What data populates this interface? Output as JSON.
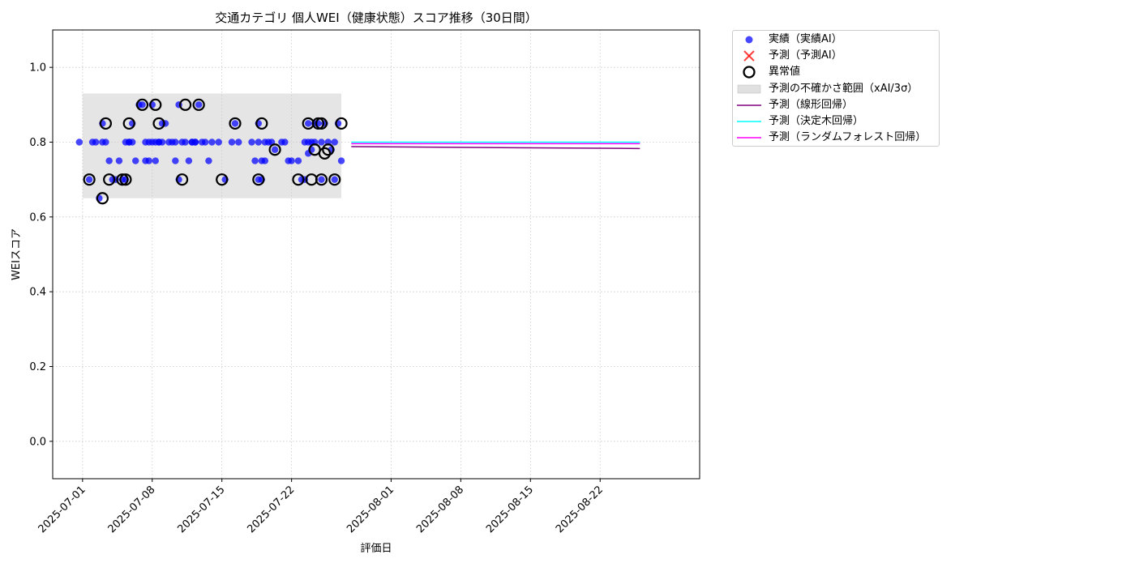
{
  "chart_data": {
    "type": "scatter",
    "title": "交通カテゴリ 個人WEI（健康状態）スコア推移（30日間）",
    "xlabel": "評価日",
    "ylabel": "WEIスコア",
    "ylim": [
      -0.1,
      1.1
    ],
    "xlim": [
      "2025-06-28",
      "2025-09-01"
    ],
    "yticks": [
      "0.0",
      "0.2",
      "0.4",
      "0.6",
      "0.8",
      "1.0"
    ],
    "xticks": [
      "2025-07-01",
      "2025-07-08",
      "2025-07-15",
      "2025-07-22",
      "2025-08-01",
      "2025-08-08",
      "2025-08-15",
      "2025-08-22"
    ],
    "grid": true,
    "legend_position": "outside-top-right",
    "uncertainty_band": {
      "x_start": "2025-07-01",
      "x_end": "2025-07-27",
      "y_low": 0.65,
      "y_high": 0.93
    },
    "actual_points": [
      [
        "2025-07-01",
        0.8
      ],
      [
        "2025-07-02",
        0.8
      ],
      [
        "2025-07-02",
        0.8
      ],
      [
        "2025-07-02",
        0.7
      ],
      [
        "2025-07-03",
        0.8
      ],
      [
        "2025-07-03",
        0.8
      ],
      [
        "2025-07-03",
        0.65
      ],
      [
        "2025-07-03",
        0.85
      ],
      [
        "2025-07-04",
        0.7
      ],
      [
        "2025-07-04",
        0.75
      ],
      [
        "2025-07-04",
        0.7
      ],
      [
        "2025-07-05",
        0.7
      ],
      [
        "2025-07-05",
        0.75
      ],
      [
        "2025-07-05",
        0.7
      ],
      [
        "2025-07-05",
        0.8
      ],
      [
        "2025-07-06",
        0.8
      ],
      [
        "2025-07-06",
        0.85
      ],
      [
        "2025-07-06",
        0.75
      ],
      [
        "2025-07-06",
        0.8
      ],
      [
        "2025-07-06",
        0.8
      ],
      [
        "2025-07-07",
        0.8
      ],
      [
        "2025-07-07",
        0.9
      ],
      [
        "2025-07-07",
        0.9
      ],
      [
        "2025-07-07",
        0.75
      ],
      [
        "2025-07-08",
        0.8
      ],
      [
        "2025-07-08",
        0.8
      ],
      [
        "2025-07-08",
        0.75
      ],
      [
        "2025-07-08",
        0.75
      ],
      [
        "2025-07-08",
        0.9
      ],
      [
        "2025-07-08",
        0.8
      ],
      [
        "2025-07-09",
        0.8
      ],
      [
        "2025-07-09",
        0.85
      ],
      [
        "2025-07-09",
        0.85
      ],
      [
        "2025-07-09",
        0.8
      ],
      [
        "2025-07-09",
        0.8
      ],
      [
        "2025-07-10",
        0.75
      ],
      [
        "2025-07-10",
        0.8
      ],
      [
        "2025-07-10",
        0.8
      ],
      [
        "2025-07-10",
        0.8
      ],
      [
        "2025-07-11",
        0.7
      ],
      [
        "2025-07-11",
        0.8
      ],
      [
        "2025-07-11",
        0.8
      ],
      [
        "2025-07-11",
        0.9
      ],
      [
        "2025-07-12",
        0.8
      ],
      [
        "2025-07-12",
        0.8
      ],
      [
        "2025-07-12",
        0.75
      ],
      [
        "2025-07-12",
        0.8
      ],
      [
        "2025-07-12",
        0.8
      ],
      [
        "2025-07-13",
        0.9
      ],
      [
        "2025-07-13",
        0.8
      ],
      [
        "2025-07-13",
        0.8
      ],
      [
        "2025-07-14",
        0.75
      ],
      [
        "2025-07-14",
        0.8
      ],
      [
        "2025-07-15",
        0.7
      ],
      [
        "2025-07-15",
        0.8
      ],
      [
        "2025-07-16",
        0.8
      ],
      [
        "2025-07-16",
        0.85
      ],
      [
        "2025-07-17",
        0.8
      ],
      [
        "2025-07-18",
        0.8
      ],
      [
        "2025-07-18",
        0.75
      ],
      [
        "2025-07-19",
        0.7
      ],
      [
        "2025-07-19",
        0.75
      ],
      [
        "2025-07-19",
        0.8
      ],
      [
        "2025-07-19",
        0.85
      ],
      [
        "2025-07-19",
        0.7
      ],
      [
        "2025-07-19",
        0.75
      ],
      [
        "2025-07-19",
        0.8
      ],
      [
        "2025-07-20",
        0.8
      ],
      [
        "2025-07-20",
        0.78
      ],
      [
        "2025-07-20",
        0.8
      ],
      [
        "2025-07-21",
        0.8
      ],
      [
        "2025-07-21",
        0.8
      ],
      [
        "2025-07-22",
        0.75
      ],
      [
        "2025-07-22",
        0.75
      ],
      [
        "2025-07-23",
        0.8
      ],
      [
        "2025-07-23",
        0.75
      ],
      [
        "2025-07-23",
        0.7
      ],
      [
        "2025-07-23",
        0.7
      ],
      [
        "2025-07-24",
        0.8
      ],
      [
        "2025-07-24",
        0.78
      ],
      [
        "2025-07-24",
        0.85
      ],
      [
        "2025-07-24",
        0.85
      ],
      [
        "2025-07-24",
        0.8
      ],
      [
        "2025-07-24",
        0.8
      ],
      [
        "2025-07-24",
        0.77
      ],
      [
        "2025-07-25",
        0.8
      ],
      [
        "2025-07-25",
        0.85
      ],
      [
        "2025-07-25",
        0.85
      ],
      [
        "2025-07-25",
        0.7
      ],
      [
        "2025-07-26",
        0.8
      ],
      [
        "2025-07-26",
        0.8
      ],
      [
        "2025-07-26",
        0.78
      ],
      [
        "2025-07-26",
        0.7
      ],
      [
        "2025-07-27",
        0.85
      ],
      [
        "2025-07-27",
        0.75
      ]
    ],
    "anomaly_points": [
      [
        "2025-07-02",
        0.7
      ],
      [
        "2025-07-03",
        0.65
      ],
      [
        "2025-07-03",
        0.85
      ],
      [
        "2025-07-04",
        0.7
      ],
      [
        "2025-07-05",
        0.7
      ],
      [
        "2025-07-05",
        0.7
      ],
      [
        "2025-07-06",
        0.85
      ],
      [
        "2025-07-07",
        0.9
      ],
      [
        "2025-07-08",
        0.9
      ],
      [
        "2025-07-09",
        0.85
      ],
      [
        "2025-07-11",
        0.7
      ],
      [
        "2025-07-11",
        0.9
      ],
      [
        "2025-07-13",
        0.9
      ],
      [
        "2025-07-15",
        0.7
      ],
      [
        "2025-07-16",
        0.85
      ],
      [
        "2025-07-19",
        0.7
      ],
      [
        "2025-07-19",
        0.85
      ],
      [
        "2025-07-20",
        0.78
      ],
      [
        "2025-07-23",
        0.7
      ],
      [
        "2025-07-24",
        0.7
      ],
      [
        "2025-07-24",
        0.78
      ],
      [
        "2025-07-24",
        0.85
      ],
      [
        "2025-07-25",
        0.85
      ],
      [
        "2025-07-25",
        0.77
      ],
      [
        "2025-07-25",
        0.85
      ],
      [
        "2025-07-25",
        0.7
      ],
      [
        "2025-07-26",
        0.7
      ],
      [
        "2025-07-26",
        0.78
      ],
      [
        "2025-07-27",
        0.85
      ]
    ],
    "series": [
      {
        "name": "予測（線形回帰）",
        "color": "#800080",
        "x": [
          "2025-07-28",
          "2025-08-26"
        ],
        "values": [
          0.788,
          0.783
        ]
      },
      {
        "name": "予測（決定木回帰）",
        "color": "#00ffff",
        "x": [
          "2025-07-28",
          "2025-08-26"
        ],
        "values": [
          0.8,
          0.8
        ]
      },
      {
        "name": "予測（ランダムフォレスト回帰）",
        "color": "#ff00ff",
        "x": [
          "2025-07-28",
          "2025-08-26"
        ],
        "values": [
          0.796,
          0.796
        ]
      }
    ],
    "legend": [
      {
        "label": "実績（実績AI）",
        "kind": "dot",
        "color": "#0000ff"
      },
      {
        "label": "予測（予測AI）",
        "kind": "cross",
        "color": "#ff0000"
      },
      {
        "label": "異常値",
        "kind": "ring",
        "color": "#000000"
      },
      {
        "label": "予測の不確かさ範囲（xAI/3σ）",
        "kind": "band",
        "color": "#cccccc"
      },
      {
        "label": "予測（線形回帰）",
        "kind": "line",
        "color": "#800080"
      },
      {
        "label": "予測（決定木回帰）",
        "kind": "line",
        "color": "#00ffff"
      },
      {
        "label": "予測（ランダムフォレスト回帰）",
        "kind": "line",
        "color": "#ff00ff"
      }
    ]
  }
}
